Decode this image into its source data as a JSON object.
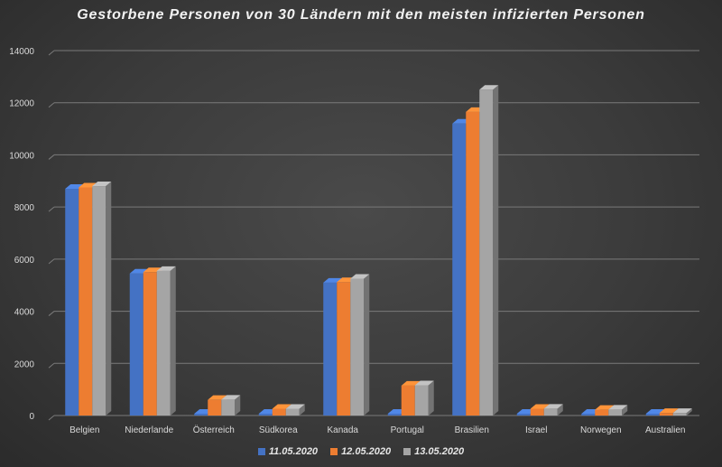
{
  "chart_data": {
    "type": "bar",
    "title": "Gestorbene Personen von 30 Ländern mit den meisten infizierten Personen",
    "xlabel": "",
    "ylabel": "",
    "ylim": [
      0,
      14000
    ],
    "y_ticks": [
      0,
      2000,
      4000,
      6000,
      8000,
      10000,
      12000,
      14000
    ],
    "grid": true,
    "legend_position": "bottom",
    "categories": [
      "Belgien",
      "Niederlande",
      "Österreich",
      "Südkorea",
      "Kanada",
      "Portugal",
      "Brasilien",
      "Israel",
      "Norwegen",
      "Australien"
    ],
    "series": [
      {
        "name": "11.05.2020",
        "color": "#4472c4",
        "values": [
          8700,
          5450,
          0,
          0,
          5100,
          0,
          11200,
          0,
          0,
          0
        ]
      },
      {
        "name": "12.05.2020",
        "color": "#ed7d31",
        "values": [
          8750,
          5500,
          600,
          260,
          5120,
          1150,
          11650,
          260,
          220,
          98
        ]
      },
      {
        "name": "13.05.2020",
        "color": "#a5a5a5",
        "values": [
          8800,
          5550,
          610,
          260,
          5250,
          1160,
          12500,
          265,
          230,
          98
        ]
      }
    ]
  }
}
